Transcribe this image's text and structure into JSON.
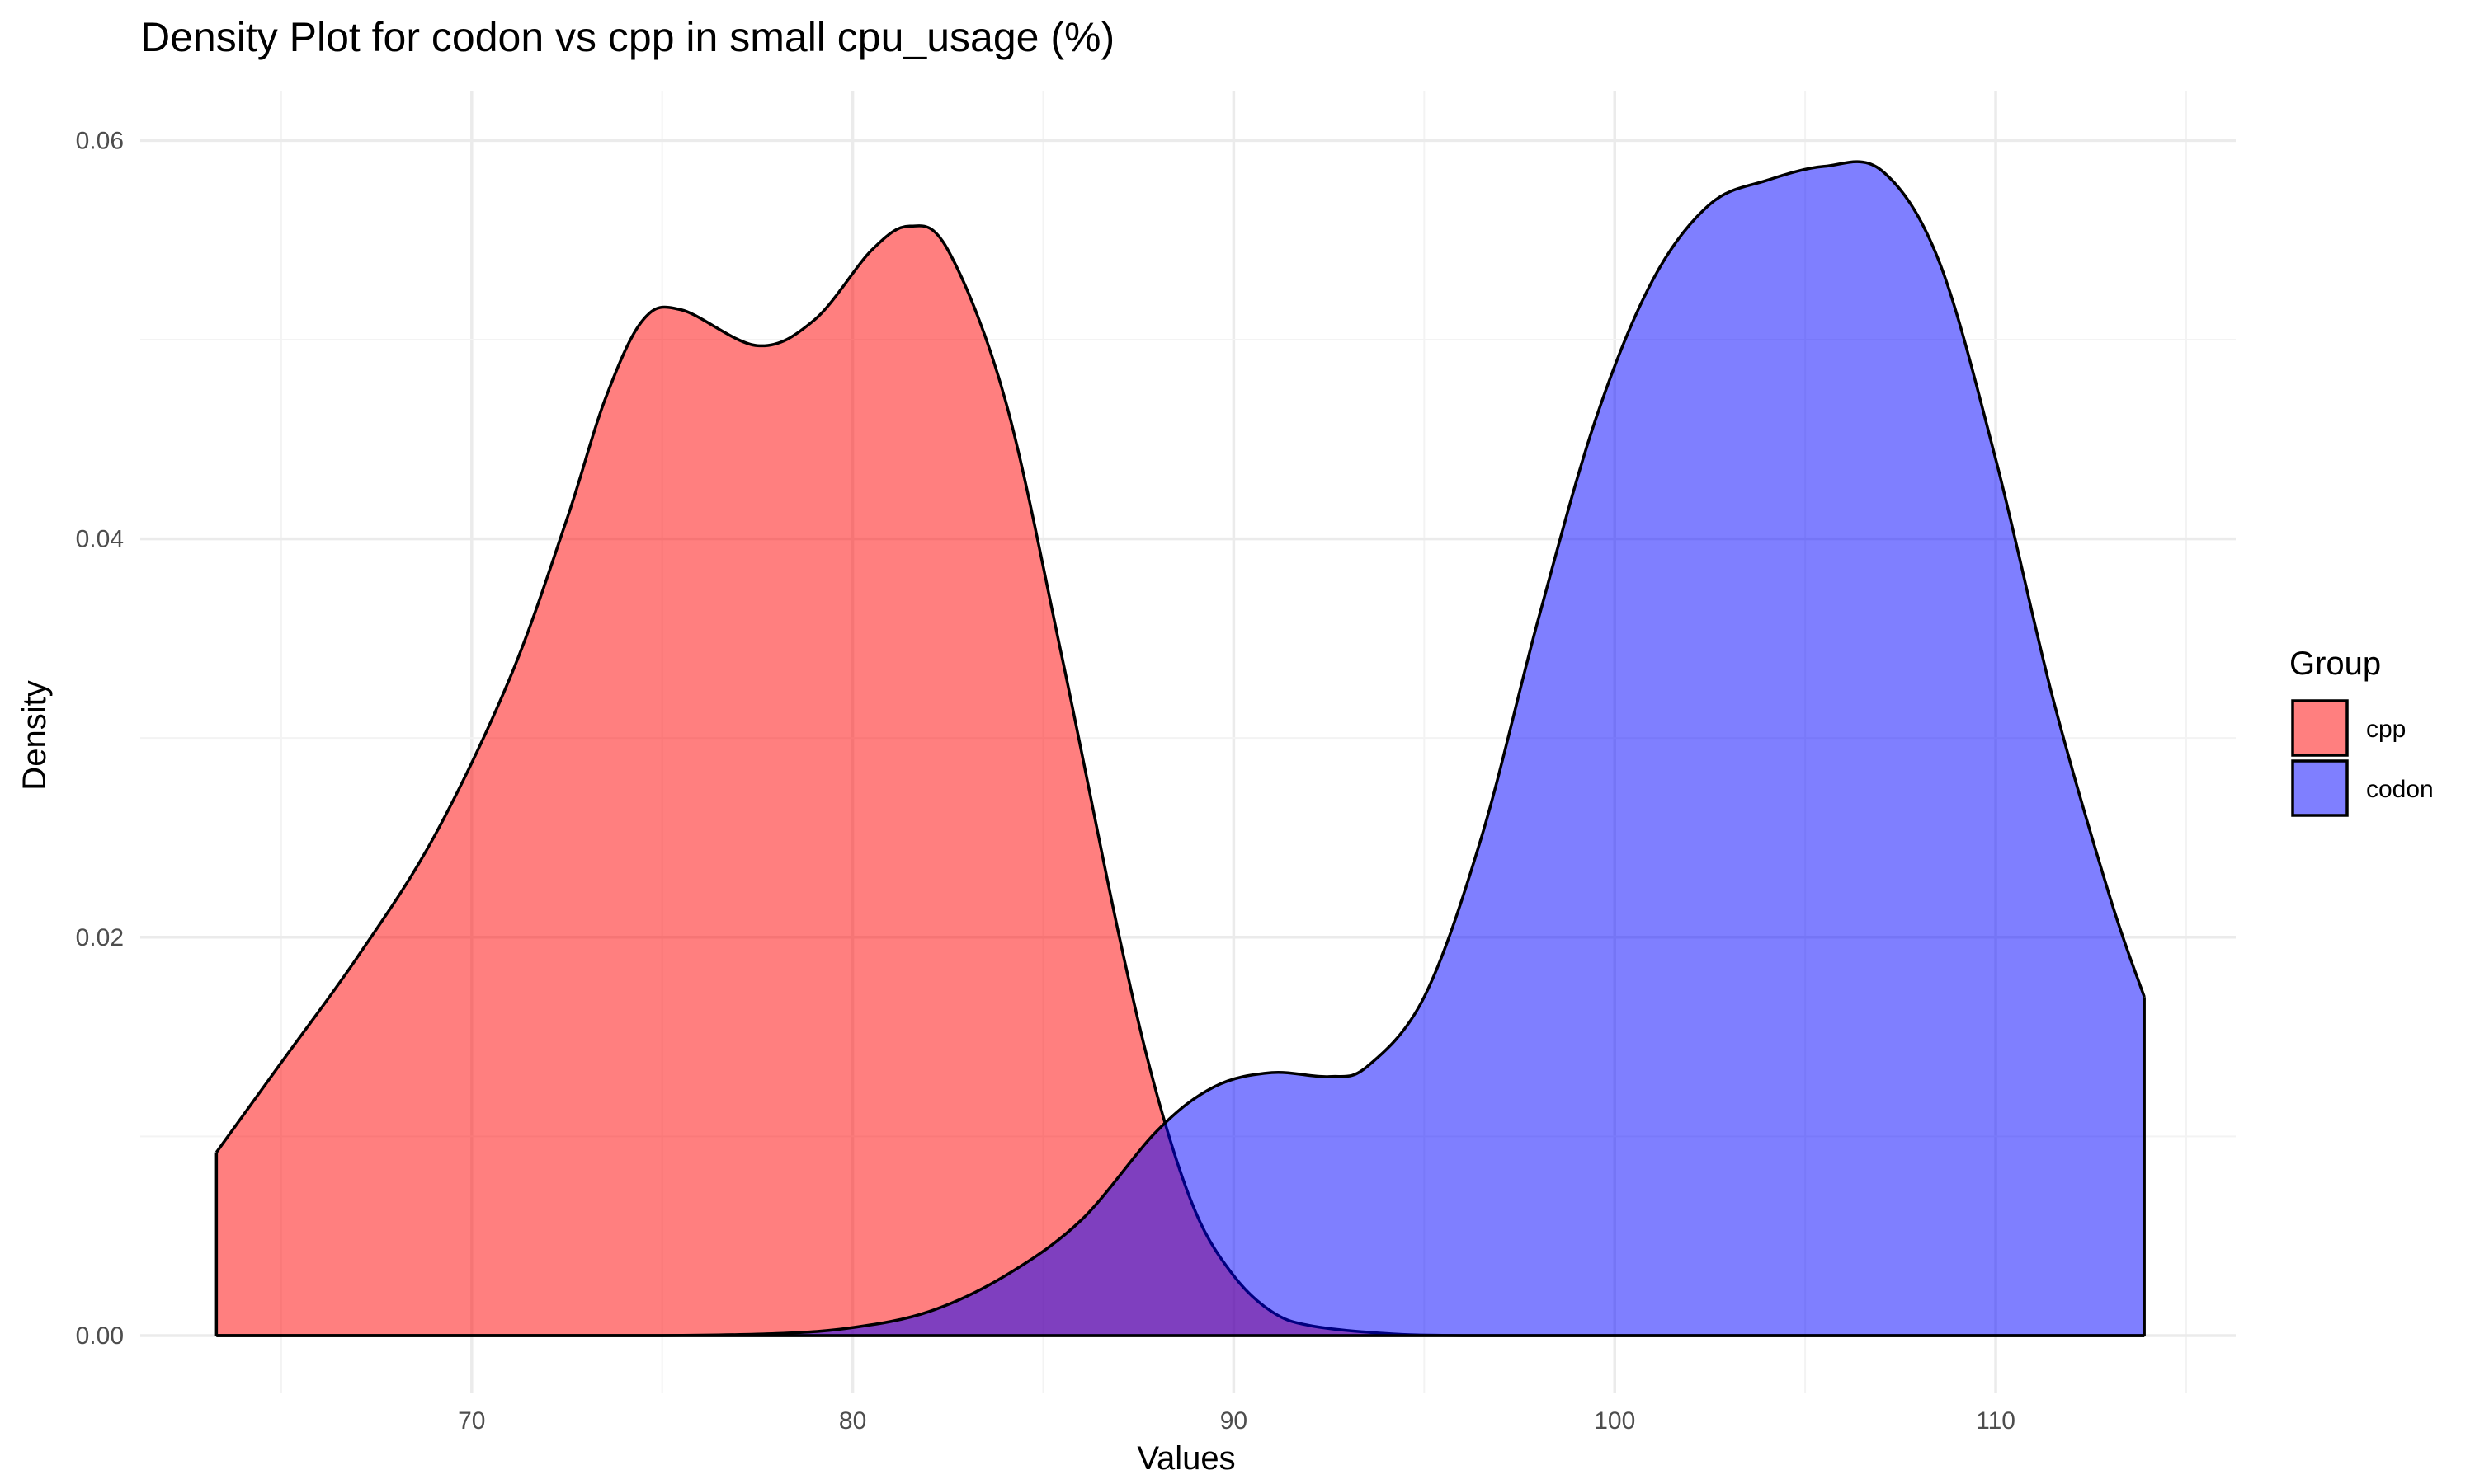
{
  "chart_data": {
    "type": "area",
    "title": "Density Plot for codon vs cpp in small cpu_usage (%)",
    "xlabel": "Values",
    "ylabel": "Density",
    "xlim": [
      61.3,
      116.3
    ],
    "ylim": [
      -0.0029,
      0.0625
    ],
    "x_ticks": [
      70,
      80,
      90,
      100,
      110
    ],
    "y_ticks": [
      0.0,
      0.02,
      0.04,
      0.06
    ],
    "x_tick_labels": [
      "70",
      "80",
      "90",
      "100",
      "110"
    ],
    "y_tick_labels": [
      "0.00",
      "0.02",
      "0.04",
      "0.06"
    ],
    "grid": true,
    "legend": {
      "title": "Group",
      "position": "right",
      "entries": [
        {
          "label": "cpp",
          "color": "#ff0000"
        },
        {
          "label": "codon",
          "color": "#0000ff"
        }
      ]
    },
    "fill_opacity": 0.5,
    "series": [
      {
        "name": "cpp",
        "color": "#ff0000",
        "points": [
          [
            63.3,
            0.0092
          ],
          [
            65,
            0.0137
          ],
          [
            67,
            0.019
          ],
          [
            69,
            0.025
          ],
          [
            71,
            0.033
          ],
          [
            72.5,
            0.041
          ],
          [
            73.5,
            0.047
          ],
          [
            74.5,
            0.051
          ],
          [
            75.5,
            0.0515
          ],
          [
            77.5,
            0.0497
          ],
          [
            79,
            0.051
          ],
          [
            80.5,
            0.0545
          ],
          [
            81.5,
            0.0557
          ],
          [
            82.5,
            0.0545
          ],
          [
            84,
            0.047
          ],
          [
            85.5,
            0.034
          ],
          [
            87,
            0.02
          ],
          [
            88,
            0.012
          ],
          [
            89,
            0.0062
          ],
          [
            90,
            0.003
          ],
          [
            91,
            0.0012
          ],
          [
            92,
            0.0005
          ],
          [
            94,
            0.0001
          ],
          [
            96,
            0.0
          ],
          [
            100,
            0.0
          ],
          [
            105,
            0.0
          ],
          [
            110,
            0.0
          ],
          [
            113.9,
            0.0
          ]
        ]
      },
      {
        "name": "codon",
        "color": "#0000ff",
        "points": [
          [
            63.3,
            0.0
          ],
          [
            70,
            0.0
          ],
          [
            75,
            0.0
          ],
          [
            78,
            0.0001
          ],
          [
            80,
            0.0004
          ],
          [
            82,
            0.0012
          ],
          [
            84,
            0.003
          ],
          [
            86,
            0.0058
          ],
          [
            88,
            0.0103
          ],
          [
            89.5,
            0.0125
          ],
          [
            91,
            0.0132
          ],
          [
            92.5,
            0.013
          ],
          [
            93.5,
            0.0135
          ],
          [
            95,
            0.017
          ],
          [
            96.5,
            0.025
          ],
          [
            98,
            0.036
          ],
          [
            99.5,
            0.046
          ],
          [
            101,
            0.053
          ],
          [
            102.5,
            0.0568
          ],
          [
            104,
            0.058
          ],
          [
            105.5,
            0.0587
          ],
          [
            107,
            0.0585
          ],
          [
            108.5,
            0.054
          ],
          [
            110,
            0.044
          ],
          [
            111.5,
            0.032
          ],
          [
            113,
            0.022
          ],
          [
            113.9,
            0.017
          ]
        ]
      }
    ]
  }
}
